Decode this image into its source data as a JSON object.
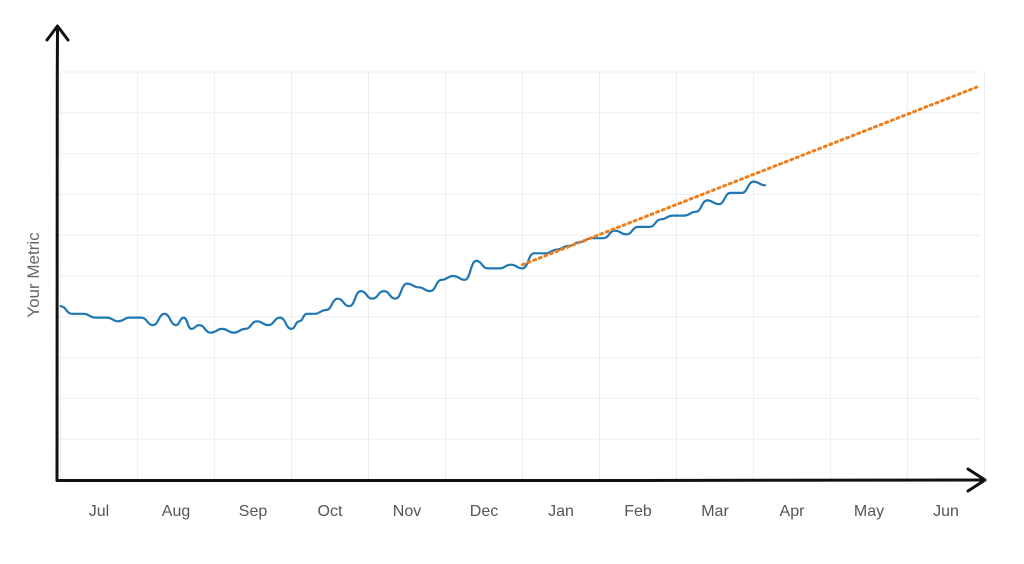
{
  "chart_data": {
    "type": "line",
    "title": "",
    "xlabel": "",
    "ylabel": "Your Metric",
    "x_ticks": [
      "Jul",
      "Aug",
      "Sep",
      "Oct",
      "Nov",
      "Dec",
      "Jan",
      "Feb",
      "Mar",
      "Apr",
      "May",
      "Jun"
    ],
    "x_range": [
      -0.5,
      11.5
    ],
    "y_ticks_shown": false,
    "grid": true,
    "legend": "none",
    "colors": {
      "actual": "#1f77b4",
      "trend": "#f07d1a",
      "axis": "#111111",
      "grid": "#eeeeee"
    },
    "series": [
      {
        "style": "solid",
        "x": [
          -0.5,
          -0.35,
          -0.2,
          -0.05,
          0.1,
          0.25,
          0.4,
          0.55,
          0.7,
          0.85,
          1.0,
          1.1,
          1.2,
          1.3,
          1.45,
          1.6,
          1.75,
          1.9,
          2.05,
          2.2,
          2.35,
          2.5,
          2.6,
          2.7,
          2.8,
          2.95,
          3.1,
          3.25,
          3.4,
          3.55,
          3.7,
          3.85,
          4.0,
          4.15,
          4.3,
          4.45,
          4.6,
          4.75,
          4.9,
          5.05,
          5.2,
          5.35,
          5.5,
          5.65,
          5.8,
          5.95,
          6.1,
          6.25,
          6.4,
          6.55,
          6.7,
          6.85,
          7.0,
          7.15,
          7.3,
          7.45,
          7.6,
          7.75,
          7.9,
          8.05,
          8.2,
          8.35,
          8.5,
          8.65
        ],
        "y": [
          46,
          44,
          44,
          43,
          43,
          42,
          43,
          43,
          41,
          44,
          41,
          43,
          40,
          41,
          39,
          40,
          39,
          40,
          42,
          41,
          43,
          40,
          42,
          44,
          44,
          45,
          48,
          46,
          50,
          48,
          50,
          48,
          52,
          51,
          50,
          53,
          54,
          53,
          58,
          56,
          56,
          57,
          56,
          60,
          60,
          61,
          62,
          63,
          64,
          64,
          66,
          65,
          67,
          67,
          69,
          70,
          70,
          71,
          74,
          73,
          76,
          76,
          79,
          78
        ]
      },
      {
        "style": "dotted",
        "x": [
          5.5,
          11.4
        ],
        "y": [
          57,
          104
        ]
      }
    ],
    "ylim": [
      0,
      108
    ]
  }
}
